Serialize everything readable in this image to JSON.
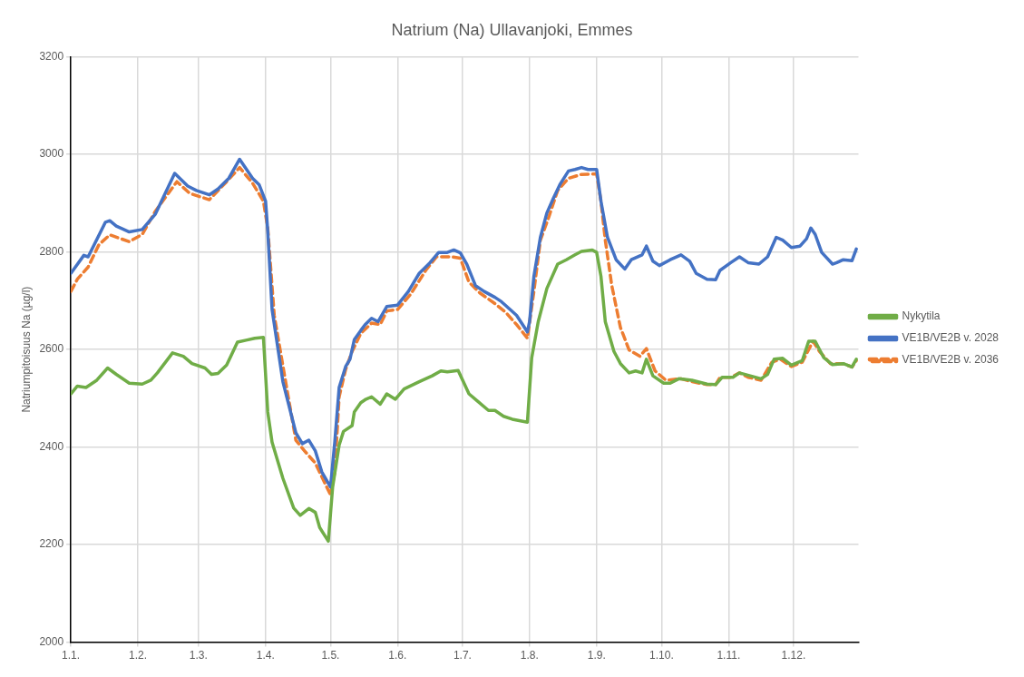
{
  "chart_data": {
    "type": "line",
    "title": "Natrium (Na) Ullavanjoki, Emmes",
    "ylabel": "Natriumpitoisuus Na (µg/l)",
    "xlim": [
      "--01-01",
      "--12-31"
    ],
    "ylim": [
      2000,
      3200
    ],
    "xticks": [
      {
        "value": "--01-01",
        "label": "1.1."
      },
      {
        "value": "--02-01",
        "label": "1.2."
      },
      {
        "value": "--03-01",
        "label": "1.3."
      },
      {
        "value": "--04-01",
        "label": "1.4."
      },
      {
        "value": "--05-01",
        "label": "1.5."
      },
      {
        "value": "--06-01",
        "label": "1.6."
      },
      {
        "value": "--07-01",
        "label": "1.7."
      },
      {
        "value": "--08-01",
        "label": "1.8."
      },
      {
        "value": "--09-01",
        "label": "1.9."
      },
      {
        "value": "--10-01",
        "label": "1.10."
      },
      {
        "value": "--11-01",
        "label": "1.11."
      },
      {
        "value": "--12-01",
        "label": "1.12."
      }
    ],
    "yticks": [
      2000,
      2200,
      2400,
      2600,
      2800,
      3000,
      3200
    ],
    "grid": true,
    "legend": "right",
    "marker": "none",
    "series": [
      {
        "name": "Nykytila",
        "color": "#70ad47",
        "line_style": "solid",
        "x": [
          "--01-01",
          "--01-04",
          "--01-08",
          "--01-13",
          "--01-18",
          "--01-22",
          "--01-28",
          "--02-03",
          "--02-07",
          "--02-10",
          "--02-17",
          "--02-22",
          "--02-26",
          "--03-04",
          "--03-07",
          "--03-10",
          "--03-14",
          "--03-19",
          "--03-23",
          "--03-27",
          "--03-31",
          "--04-02",
          "--04-04",
          "--04-09",
          "--04-14",
          "--04-17",
          "--04-21",
          "--04-24",
          "--04-26",
          "--04-30",
          "--05-02",
          "--05-05",
          "--05-07",
          "--05-11",
          "--05-12",
          "--05-15",
          "--05-17",
          "--05-20",
          "--05-24",
          "--05-27",
          "--05-31",
          "--06-04",
          "--06-11",
          "--06-17",
          "--06-21",
          "--06-24",
          "--06-29",
          "--07-04",
          "--07-08",
          "--07-13",
          "--07-16",
          "--07-20",
          "--07-24",
          "--07-31",
          "--08-02",
          "--08-05",
          "--08-09",
          "--08-14",
          "--08-18",
          "--08-22",
          "--08-25",
          "--08-30",
          "--09-01",
          "--09-03",
          "--09-05",
          "--09-09",
          "--09-12",
          "--09-16",
          "--09-19",
          "--09-22",
          "--09-24",
          "--09-27",
          "--10-02",
          "--10-05",
          "--10-09",
          "--10-15",
          "--10-22",
          "--10-26",
          "--10-29",
          "--11-03",
          "--11-06",
          "--11-11",
          "--11-16",
          "--11-19",
          "--11-22",
          "--11-26",
          "--11-30",
          "--12-05",
          "--12-08",
          "--12-11",
          "--12-15",
          "--12-19",
          "--12-24",
          "--12-28",
          "--12-30"
        ],
        "values": [
          2509,
          2525,
          2522,
          2537,
          2562,
          2549,
          2531,
          2529,
          2537,
          2552,
          2593,
          2586,
          2571,
          2562,
          2549,
          2551,
          2568,
          2615,
          2619,
          2623,
          2625,
          2472,
          2410,
          2336,
          2275,
          2260,
          2274,
          2266,
          2235,
          2207,
          2318,
          2404,
          2432,
          2444,
          2472,
          2491,
          2497,
          2503,
          2488,
          2509,
          2498,
          2519,
          2534,
          2546,
          2556,
          2554,
          2557,
          2509,
          2494,
          2475,
          2475,
          2463,
          2457,
          2451,
          2583,
          2657,
          2725,
          2775,
          2784,
          2794,
          2801,
          2804,
          2799,
          2750,
          2657,
          2596,
          2571,
          2552,
          2556,
          2552,
          2580,
          2546,
          2531,
          2531,
          2540,
          2537,
          2529,
          2528,
          2543,
          2543,
          2552,
          2546,
          2540,
          2549,
          2580,
          2582,
          2568,
          2577,
          2617,
          2617,
          2583,
          2569,
          2571,
          2564,
          2580
        ]
      },
      {
        "name": "VE1B/VE2B v. 2028",
        "color": "#4472c4",
        "line_style": "solid",
        "x": [
          "--01-01",
          "--01-07",
          "--01-09",
          "--01-17",
          "--01-19",
          "--01-22",
          "--01-28",
          "--02-03",
          "--02-09",
          "--02-18",
          "--02-24",
          "--02-28",
          "--03-06",
          "--03-10",
          "--03-15",
          "--03-20",
          "--03-26",
          "--03-29",
          "--04-01",
          "--04-02",
          "--04-04",
          "--04-09",
          "--04-15",
          "--04-18",
          "--04-21",
          "--04-24",
          "--04-27",
          "--05-01",
          "--05-03",
          "--05-05",
          "--05-08",
          "--05-10",
          "--05-12",
          "--05-15",
          "--05-17",
          "--05-20",
          "--05-23",
          "--05-27",
          "--06-01",
          "--06-06",
          "--06-11",
          "--06-16",
          "--06-20",
          "--06-24",
          "--06-27",
          "--06-30",
          "--07-03",
          "--07-07",
          "--07-11",
          "--07-16",
          "--07-19",
          "--07-23",
          "--07-26",
          "--07-31",
          "--08-01",
          "--08-03",
          "--08-06",
          "--08-09",
          "--08-12",
          "--08-15",
          "--08-19",
          "--08-22",
          "--08-25",
          "--08-28",
          "--09-01",
          "--09-03",
          "--09-06",
          "--09-10",
          "--09-14",
          "--09-17",
          "--09-22",
          "--09-24",
          "--09-27",
          "--09-30",
          "--10-05",
          "--10-10",
          "--10-14",
          "--10-17",
          "--10-22",
          "--10-26",
          "--10-28",
          "--11-02",
          "--11-06",
          "--11-10",
          "--11-15",
          "--11-19",
          "--11-23",
          "--11-26",
          "--11-30",
          "--12-04",
          "--12-07",
          "--12-09",
          "--12-11",
          "--12-14",
          "--12-19",
          "--12-21",
          "--12-24",
          "--12-28",
          "--12-30"
        ],
        "values": [
          2756,
          2793,
          2790,
          2861,
          2864,
          2853,
          2841,
          2846,
          2877,
          2961,
          2935,
          2926,
          2917,
          2929,
          2951,
          2990,
          2951,
          2938,
          2904,
          2843,
          2682,
          2534,
          2429,
          2407,
          2414,
          2392,
          2349,
          2318,
          2411,
          2522,
          2565,
          2580,
          2620,
          2639,
          2651,
          2664,
          2657,
          2688,
          2691,
          2719,
          2756,
          2778,
          2799,
          2799,
          2804,
          2798,
          2775,
          2731,
          2719,
          2707,
          2698,
          2682,
          2670,
          2636,
          2657,
          2750,
          2830,
          2880,
          2910,
          2938,
          2966,
          2969,
          2973,
          2969,
          2969,
          2904,
          2830,
          2784,
          2765,
          2784,
          2794,
          2812,
          2781,
          2772,
          2784,
          2794,
          2781,
          2756,
          2744,
          2743,
          2762,
          2778,
          2790,
          2778,
          2775,
          2790,
          2830,
          2824,
          2809,
          2812,
          2827,
          2849,
          2836,
          2799,
          2775,
          2778,
          2784,
          2782,
          2806
        ]
      },
      {
        "name": "VE1B/VE2B v. 2036",
        "color": "#ed7d31",
        "line_style": "dashed",
        "x": [
          "--01-01",
          "--01-04",
          "--01-09",
          "--01-14",
          "--01-19",
          "--01-28",
          "--02-03",
          "--02-09",
          "--02-19",
          "--02-25",
          "--03-06",
          "--03-14",
          "--03-20",
          "--03-26",
          "--03-31",
          "--04-02",
          "--04-05",
          "--04-11",
          "--04-15",
          "--04-19",
          "--04-24",
          "--05-01",
          "--05-03",
          "--05-05",
          "--05-08",
          "--05-11",
          "--05-15",
          "--05-20",
          "--05-24",
          "--05-27",
          "--06-01",
          "--06-07",
          "--06-14",
          "--06-19",
          "--06-26",
          "--06-30",
          "--07-04",
          "--07-09",
          "--07-16",
          "--07-21",
          "--07-26",
          "--07-31",
          "--08-03",
          "--08-06",
          "--08-10",
          "--08-14",
          "--08-19",
          "--08-25",
          "--09-01",
          "--09-03",
          "--09-05",
          "--09-08",
          "--09-12",
          "--09-16",
          "--09-21",
          "--09-24",
          "--09-28",
          "--10-03",
          "--10-10",
          "--10-15",
          "--10-22",
          "--10-26",
          "--10-28",
          "--11-02",
          "--11-06",
          "--11-10",
          "--11-16",
          "--11-21",
          "--11-25",
          "--11-30",
          "--12-05",
          "--12-10",
          "--12-13",
          "--12-18",
          "--12-24",
          "--12-28",
          "--12-30"
        ],
        "values": [
          2719,
          2744,
          2769,
          2815,
          2835,
          2821,
          2836,
          2883,
          2944,
          2920,
          2907,
          2944,
          2973,
          2941,
          2904,
          2849,
          2670,
          2515,
          2414,
          2392,
          2367,
          2302,
          2349,
          2503,
          2559,
          2596,
          2633,
          2654,
          2651,
          2679,
          2682,
          2713,
          2762,
          2790,
          2790,
          2787,
          2738,
          2716,
          2694,
          2676,
          2651,
          2623,
          2719,
          2824,
          2873,
          2926,
          2951,
          2959,
          2960,
          2904,
          2824,
          2731,
          2645,
          2599,
          2586,
          2602,
          2556,
          2537,
          2540,
          2534,
          2528,
          2528,
          2543,
          2543,
          2552,
          2543,
          2537,
          2574,
          2580,
          2565,
          2574,
          2617,
          2596,
          2571,
          2571,
          2564,
          2577
        ]
      }
    ]
  }
}
